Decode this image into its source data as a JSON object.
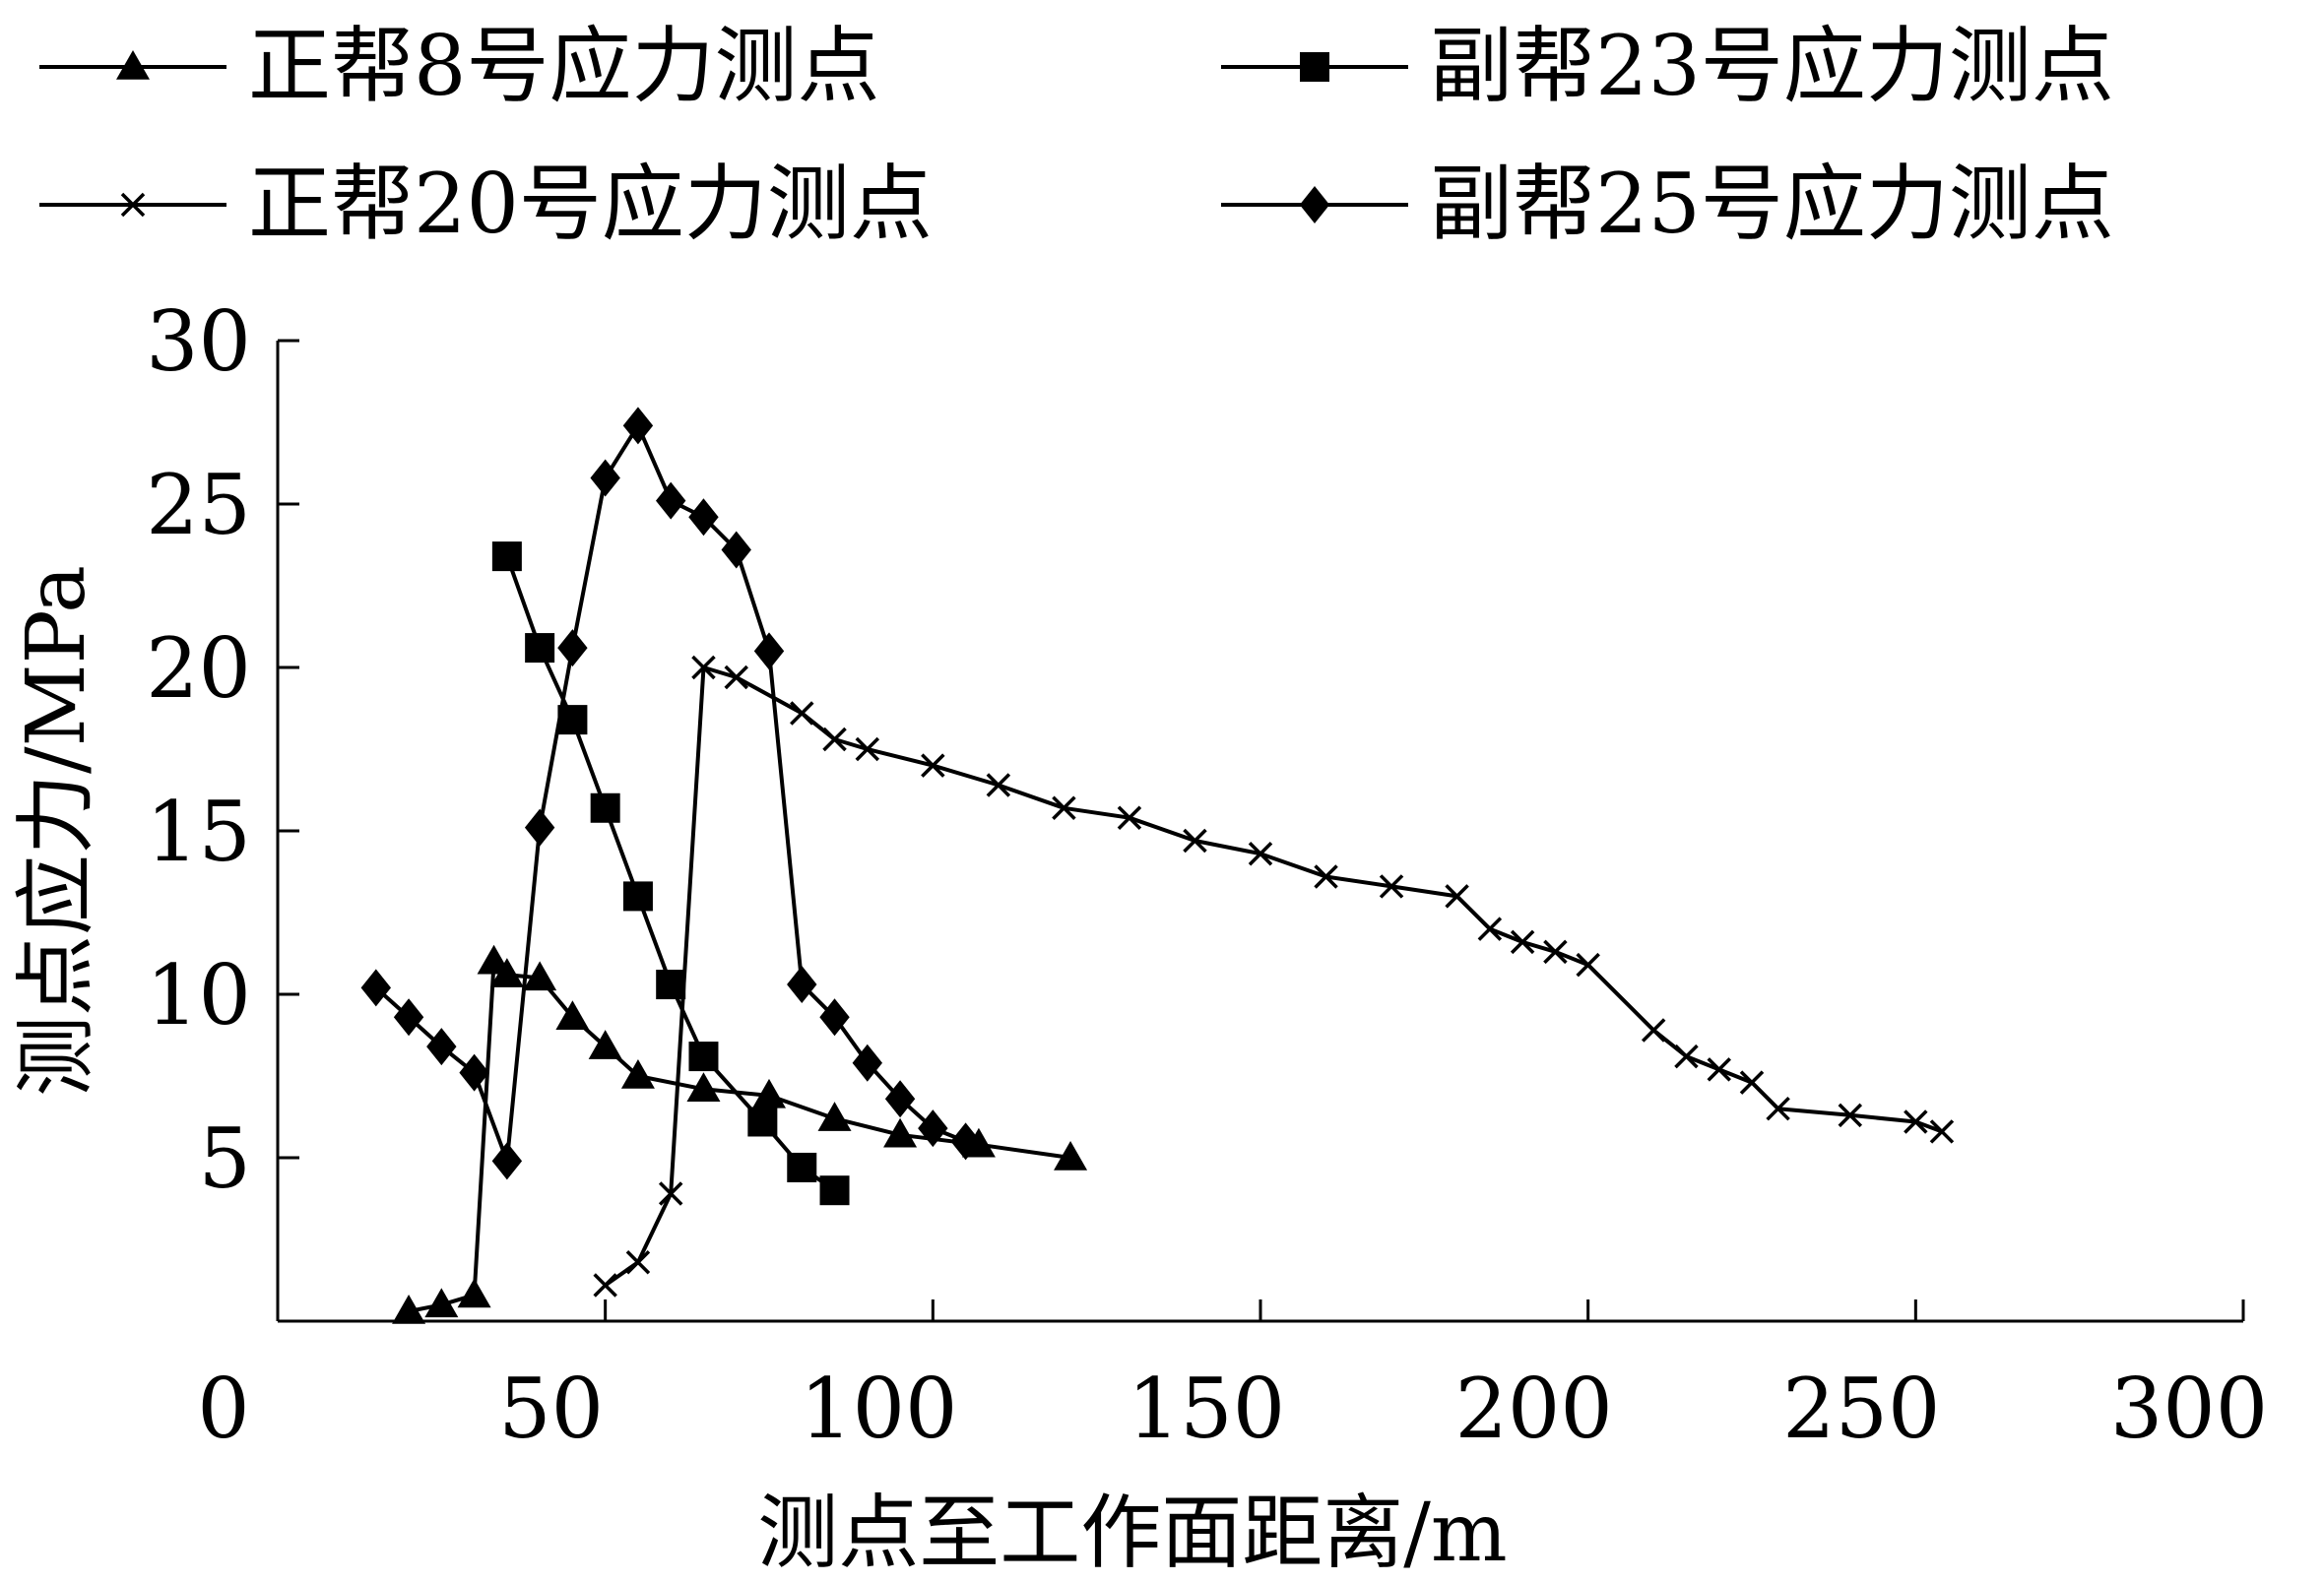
{
  "chart_data": {
    "type": "line",
    "title": "",
    "xlabel": "测点至工作面距离/m",
    "ylabel": "测点应力/MPa",
    "xlim": [
      0,
      300
    ],
    "ylim": [
      0,
      30
    ],
    "x_ticks": [
      0,
      50,
      100,
      150,
      200,
      250,
      300
    ],
    "y_ticks": [
      5,
      10,
      15,
      20,
      25,
      30
    ],
    "x_tick_labels": [
      "0",
      "50",
      "100",
      "150",
      "200",
      "250",
      "300"
    ],
    "y_tick_labels": [
      "5",
      "10",
      "15",
      "20",
      "25",
      "30"
    ],
    "grid": false,
    "legend_position": "top",
    "series": [
      {
        "name": "正帮8号应力测点",
        "marker": "triangle",
        "color": "#000000",
        "points": [
          [
            20,
            0.3
          ],
          [
            25,
            0.5
          ],
          [
            30,
            0.8
          ],
          [
            33,
            11.0
          ],
          [
            35,
            10.6
          ],
          [
            40,
            10.5
          ],
          [
            45,
            9.3
          ],
          [
            50,
            8.4
          ],
          [
            55,
            7.5
          ],
          [
            65,
            7.1
          ],
          [
            75,
            6.9
          ],
          [
            85,
            6.2
          ],
          [
            95,
            5.7
          ],
          [
            107,
            5.4
          ],
          [
            121,
            5.0
          ]
        ]
      },
      {
        "name": "副帮23号应力测点",
        "marker": "square",
        "color": "#000000",
        "points": [
          [
            35,
            23.4
          ],
          [
            40,
            20.6
          ],
          [
            45,
            18.4
          ],
          [
            50,
            15.7
          ],
          [
            55,
            13.0
          ],
          [
            60,
            10.3
          ],
          [
            65,
            8.1
          ],
          [
            74,
            6.1
          ],
          [
            80,
            4.7
          ],
          [
            85,
            4.0
          ]
        ]
      },
      {
        "name": "正帮20号应力测点",
        "marker": "cross",
        "color": "#000000",
        "points": [
          [
            50,
            1.1
          ],
          [
            55,
            1.8
          ],
          [
            60,
            3.9
          ],
          [
            65,
            20.0
          ],
          [
            70,
            19.7
          ],
          [
            80,
            18.6
          ],
          [
            85,
            17.8
          ],
          [
            90,
            17.5
          ],
          [
            100,
            17.0
          ],
          [
            110,
            16.4
          ],
          [
            120,
            15.7
          ],
          [
            130,
            15.4
          ],
          [
            140,
            14.7
          ],
          [
            150,
            14.3
          ],
          [
            160,
            13.6
          ],
          [
            170,
            13.3
          ],
          [
            180,
            13.0
          ],
          [
            185,
            12.0
          ],
          [
            190,
            11.6
          ],
          [
            195,
            11.3
          ],
          [
            200,
            10.9
          ],
          [
            210,
            8.9
          ],
          [
            215,
            8.1
          ],
          [
            220,
            7.7
          ],
          [
            225,
            7.3
          ],
          [
            229,
            6.5
          ],
          [
            240,
            6.3
          ],
          [
            250,
            6.1
          ],
          [
            254,
            5.8
          ]
        ]
      },
      {
        "name": "副帮25号应力测点",
        "marker": "diamond",
        "color": "#000000",
        "points": [
          [
            15,
            10.2
          ],
          [
            20,
            9.3
          ],
          [
            25,
            8.4
          ],
          [
            30,
            7.6
          ],
          [
            35,
            4.9
          ],
          [
            40,
            15.1
          ],
          [
            45,
            20.6
          ],
          [
            50,
            25.8
          ],
          [
            55,
            27.4
          ],
          [
            60,
            25.1
          ],
          [
            65,
            24.6
          ],
          [
            70,
            23.6
          ],
          [
            75,
            20.5
          ],
          [
            80,
            10.3
          ],
          [
            85,
            9.3
          ],
          [
            90,
            7.9
          ],
          [
            95,
            6.8
          ],
          [
            100,
            5.9
          ],
          [
            105,
            5.5
          ]
        ]
      }
    ]
  }
}
